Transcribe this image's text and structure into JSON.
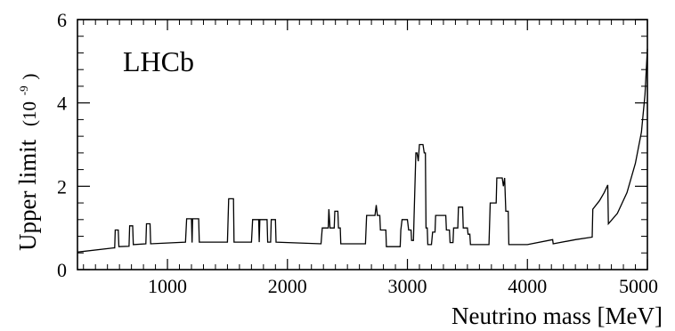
{
  "chart_data": {
    "type": "line",
    "annotation": "LHCb",
    "xlabel": "Neutrino mass [MeV]",
    "ylabel_main": "Upper limit",
    "ylabel_unit_open": "(10",
    "ylabel_unit_exp": "-9",
    "ylabel_unit_close": ")",
    "xlim": [
      250,
      5000
    ],
    "ylim": [
      0,
      6
    ],
    "x_ticks": [
      1000,
      2000,
      3000,
      4000,
      5000
    ],
    "y_ticks": [
      0,
      2,
      4,
      6
    ],
    "x_tick_labels": [
      "1000",
      "2000",
      "3000",
      "4000",
      "5000"
    ],
    "y_tick_labels": [
      "0",
      "2",
      "4",
      "6"
    ],
    "grid": false,
    "series": [
      {
        "color": "#000000",
        "points": [
          [
            250,
            0.42
          ],
          [
            550,
            0.52
          ],
          [
            560,
            0.52
          ],
          [
            565,
            0.95
          ],
          [
            590,
            0.95
          ],
          [
            595,
            0.55
          ],
          [
            680,
            0.56
          ],
          [
            685,
            1.05
          ],
          [
            710,
            1.05
          ],
          [
            715,
            0.6
          ],
          [
            820,
            0.62
          ],
          [
            825,
            1.1
          ],
          [
            855,
            1.1
          ],
          [
            860,
            0.62
          ],
          [
            1150,
            0.66
          ],
          [
            1160,
            1.22
          ],
          [
            1200,
            1.22
          ],
          [
            1205,
            0.65
          ],
          [
            1210,
            1.22
          ],
          [
            1260,
            1.22
          ],
          [
            1265,
            0.66
          ],
          [
            1500,
            0.66
          ],
          [
            1510,
            1.7
          ],
          [
            1550,
            1.7
          ],
          [
            1555,
            0.66
          ],
          [
            1700,
            0.66
          ],
          [
            1710,
            1.2
          ],
          [
            1760,
            1.2
          ],
          [
            1765,
            0.66
          ],
          [
            1770,
            1.2
          ],
          [
            1830,
            1.2
          ],
          [
            1835,
            0.66
          ],
          [
            1860,
            0.66
          ],
          [
            1865,
            1.2
          ],
          [
            1900,
            1.2
          ],
          [
            1905,
            0.66
          ],
          [
            2280,
            0.62
          ],
          [
            2290,
            1.0
          ],
          [
            2340,
            1.0
          ],
          [
            2345,
            1.45
          ],
          [
            2355,
            1.0
          ],
          [
            2390,
            1.0
          ],
          [
            2395,
            1.4
          ],
          [
            2420,
            1.4
          ],
          [
            2425,
            1.0
          ],
          [
            2440,
            1.0
          ],
          [
            2445,
            0.62
          ],
          [
            2650,
            0.62
          ],
          [
            2660,
            1.3
          ],
          [
            2730,
            1.3
          ],
          [
            2740,
            1.55
          ],
          [
            2750,
            1.3
          ],
          [
            2770,
            1.3
          ],
          [
            2775,
            0.95
          ],
          [
            2820,
            0.95
          ],
          [
            2825,
            0.55
          ],
          [
            2940,
            0.55
          ],
          [
            2945,
            0.95
          ],
          [
            2955,
            1.2
          ],
          [
            3000,
            1.2
          ],
          [
            3010,
            0.95
          ],
          [
            3030,
            0.95
          ],
          [
            3035,
            0.7
          ],
          [
            3050,
            0.7
          ],
          [
            3055,
            1.2
          ],
          [
            3070,
            2.8
          ],
          [
            3080,
            2.8
          ],
          [
            3090,
            2.6
          ],
          [
            3100,
            3.0
          ],
          [
            3130,
            3.0
          ],
          [
            3140,
            2.8
          ],
          [
            3150,
            2.8
          ],
          [
            3155,
            1.0
          ],
          [
            3165,
            1.0
          ],
          [
            3170,
            0.6
          ],
          [
            3200,
            0.6
          ],
          [
            3210,
            0.9
          ],
          [
            3230,
            0.9
          ],
          [
            3235,
            1.3
          ],
          [
            3320,
            1.3
          ],
          [
            3325,
            0.95
          ],
          [
            3350,
            0.95
          ],
          [
            3355,
            0.65
          ],
          [
            3380,
            0.65
          ],
          [
            3385,
            1.0
          ],
          [
            3420,
            1.0
          ],
          [
            3425,
            1.5
          ],
          [
            3460,
            1.5
          ],
          [
            3465,
            1.0
          ],
          [
            3500,
            1.0
          ],
          [
            3505,
            0.85
          ],
          [
            3520,
            0.85
          ],
          [
            3525,
            0.6
          ],
          [
            3680,
            0.6
          ],
          [
            3690,
            1.6
          ],
          [
            3740,
            1.6
          ],
          [
            3745,
            2.2
          ],
          [
            3790,
            2.2
          ],
          [
            3800,
            2.0
          ],
          [
            3810,
            2.2
          ],
          [
            3820,
            1.4
          ],
          [
            3840,
            1.4
          ],
          [
            3845,
            0.6
          ],
          [
            4000,
            0.6
          ],
          [
            4210,
            0.72
          ],
          [
            4215,
            0.62
          ],
          [
            4400,
            0.72
          ],
          [
            4540,
            0.78
          ],
          [
            4545,
            1.45
          ],
          [
            4600,
            1.65
          ],
          [
            4640,
            1.85
          ],
          [
            4670,
            2.03
          ],
          [
            4675,
            1.1
          ],
          [
            4750,
            1.35
          ],
          [
            4830,
            1.85
          ],
          [
            4900,
            2.55
          ],
          [
            4950,
            3.3
          ],
          [
            4980,
            4.2
          ],
          [
            5000,
            5.3
          ]
        ]
      }
    ]
  }
}
